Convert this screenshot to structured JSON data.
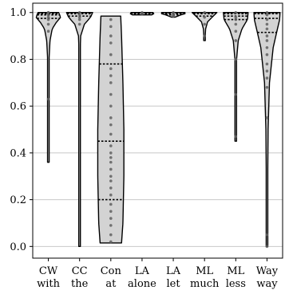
{
  "chart_data": {
    "type": "violin",
    "ylim": [
      -0.05,
      1.04
    ],
    "yticks": [
      0.0,
      0.2,
      0.4,
      0.6,
      0.8,
      1.0
    ],
    "ytick_labels": [
      "0.0",
      "0.2",
      "0.4",
      "0.6",
      "0.8",
      "1.0"
    ],
    "grid": true,
    "colors": {
      "violin_fill": "#d3d3d3",
      "outline": "#000000",
      "points": "#5f5f5f",
      "grid": "#c8c8c8"
    },
    "violins": [
      {
        "label_top": "CW",
        "label_bottom": "with",
        "min": 0.36,
        "max": 1.0,
        "q1": 0.975,
        "median": 0.99,
        "q3": 0.995,
        "profile": [
          [
            0.36,
            0.01
          ],
          [
            0.45,
            0.02
          ],
          [
            0.6,
            0.02
          ],
          [
            0.8,
            0.05
          ],
          [
            0.88,
            0.12
          ],
          [
            0.93,
            0.28
          ],
          [
            0.96,
            0.6
          ],
          [
            0.98,
            0.9
          ],
          [
            1.0,
            0.75
          ]
        ],
        "points": [
          0.92,
          0.95,
          0.97,
          0.98,
          0.99,
          1.0,
          1.0,
          0.63
        ]
      },
      {
        "label_top": "CC",
        "label_bottom": "the",
        "min": 0.0,
        "max": 1.0,
        "q1": 0.985,
        "median": 0.995,
        "q3": 1.0,
        "profile": [
          [
            0.0,
            0.01
          ],
          [
            0.5,
            0.01
          ],
          [
            0.8,
            0.02
          ],
          [
            0.9,
            0.08
          ],
          [
            0.95,
            0.35
          ],
          [
            0.98,
            0.8
          ],
          [
            1.0,
            0.95
          ]
        ],
        "points": [
          0.95,
          0.97,
          0.98,
          0.99,
          1.0
        ]
      },
      {
        "label_top": "Con",
        "label_bottom": "at",
        "min": 0.015,
        "max": 0.985,
        "q1": 0.2,
        "median": 0.45,
        "q3": 0.78,
        "profile": [
          [
            0.015,
            0.78
          ],
          [
            0.1,
            0.88
          ],
          [
            0.3,
            0.95
          ],
          [
            0.5,
            0.95
          ],
          [
            0.7,
            0.88
          ],
          [
            0.9,
            0.78
          ],
          [
            0.985,
            0.72
          ]
        ],
        "points": [
          0.02,
          0.05,
          0.09,
          0.12,
          0.15,
          0.18,
          0.22,
          0.25,
          0.28,
          0.3,
          0.33,
          0.36,
          0.38,
          0.4,
          0.43,
          0.48,
          0.52,
          0.55,
          0.6,
          0.65,
          0.7,
          0.73,
          0.76,
          0.82,
          0.87,
          0.9,
          0.94,
          0.97
        ]
      },
      {
        "label_top": "LA",
        "label_bottom": "alone",
        "min": 0.99,
        "max": 1.0,
        "q1": 0.995,
        "median": 0.998,
        "q3": 1.0,
        "profile": [
          [
            0.99,
            0.7
          ],
          [
            0.995,
            0.85
          ],
          [
            1.0,
            0.8
          ]
        ],
        "points": [
          0.995,
          1.0
        ]
      },
      {
        "label_top": "LA",
        "label_bottom": "let",
        "min": 0.98,
        "max": 1.0,
        "q1": 0.99,
        "median": 0.995,
        "q3": 1.0,
        "profile": [
          [
            0.98,
            0.12
          ],
          [
            0.99,
            0.55
          ],
          [
            0.995,
            0.85
          ],
          [
            1.0,
            0.85
          ]
        ],
        "points": [
          0.985,
          0.99,
          1.0
        ]
      },
      {
        "label_top": "ML",
        "label_bottom": "much",
        "min": 0.88,
        "max": 1.0,
        "q1": 0.985,
        "median": 0.995,
        "q3": 1.0,
        "profile": [
          [
            0.88,
            0.03
          ],
          [
            0.93,
            0.08
          ],
          [
            0.96,
            0.22
          ],
          [
            0.98,
            0.55
          ],
          [
            1.0,
            0.9
          ]
        ],
        "points": [
          0.9,
          0.95,
          0.98,
          1.0
        ]
      },
      {
        "label_top": "ML",
        "label_bottom": "less",
        "min": 0.45,
        "max": 1.0,
        "q1": 0.97,
        "median": 0.985,
        "q3": 0.995,
        "profile": [
          [
            0.45,
            0.02
          ],
          [
            0.6,
            0.03
          ],
          [
            0.8,
            0.06
          ],
          [
            0.88,
            0.18
          ],
          [
            0.93,
            0.45
          ],
          [
            0.97,
            0.85
          ],
          [
            1.0,
            0.9
          ]
        ],
        "points": [
          0.47,
          0.65,
          0.8,
          0.88,
          0.92,
          0.95,
          0.97,
          0.98,
          1.0
        ]
      },
      {
        "label_top": "Way",
        "label_bottom": "way",
        "min": 0.0,
        "max": 1.0,
        "q1": 0.915,
        "median": 0.975,
        "q3": 0.995,
        "profile": [
          [
            0.0,
            0.04
          ],
          [
            0.2,
            0.04
          ],
          [
            0.5,
            0.08
          ],
          [
            0.7,
            0.18
          ],
          [
            0.85,
            0.45
          ],
          [
            0.92,
            0.72
          ],
          [
            0.97,
            0.92
          ],
          [
            1.0,
            0.95
          ]
        ],
        "points": [
          0.0,
          0.05,
          0.55,
          0.68,
          0.72,
          0.75,
          0.78,
          0.82,
          0.85,
          0.88,
          0.9,
          0.93,
          0.95,
          0.97,
          0.99,
          1.0
        ]
      }
    ]
  }
}
